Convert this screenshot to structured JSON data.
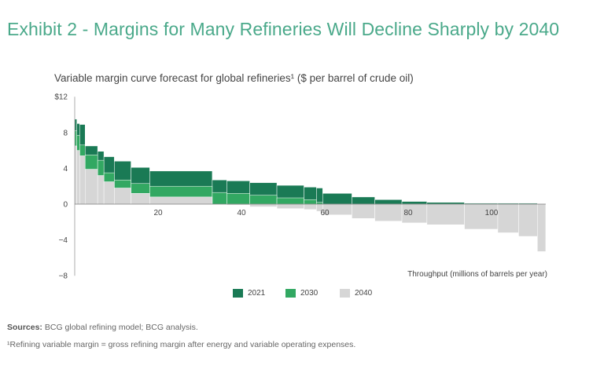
{
  "exhibit_title": "Exhibit 2 - Margins for Many Refineries Will Decline Sharply by 2040",
  "chart_subtitle": "Variable margin curve forecast for global refineries¹ ($ per barrel of crude oil)",
  "sources_label": "Sources:",
  "sources_text": "BCG global refining model; BCG analysis.",
  "footnote": "¹Refining variable margin = gross refining margin after energy and variable operating expenses.",
  "colors": {
    "2021": "#1a7a55",
    "2030": "#32a862",
    "2040": "#d6d6d6"
  },
  "chart_data": {
    "type": "bar",
    "subtype": "step-curve (variable-width bars)",
    "title": "Variable margin curve forecast for global refineries¹ ($ per barrel of crude oil)",
    "xlabel": "Throughput (millions of barrels per year)",
    "ylabel": "",
    "xlim": [
      0,
      113
    ],
    "ylim": [
      -8,
      12
    ],
    "y_ticks": [
      "$12",
      "8",
      "4",
      "0",
      "−4",
      "−8"
    ],
    "y_tick_values": [
      12,
      8,
      4,
      0,
      -4,
      -8
    ],
    "x_ticks": [
      "20",
      "40",
      "60",
      "80",
      "100"
    ],
    "x_tick_values": [
      20,
      40,
      60,
      80,
      100
    ],
    "legend": [
      "2021",
      "2030",
      "2040"
    ],
    "legend_position": "bottom",
    "series": [
      {
        "name": "2021",
        "steps": [
          [
            0,
            9.5
          ],
          [
            0.5,
            9.0
          ],
          [
            1.2,
            8.9
          ],
          [
            2.5,
            6.5
          ],
          [
            5.5,
            5.9
          ],
          [
            7.0,
            5.3
          ],
          [
            9.5,
            4.8
          ],
          [
            13.5,
            4.1
          ],
          [
            18.0,
            3.7
          ],
          [
            33.0,
            2.7
          ],
          [
            36.5,
            2.6
          ],
          [
            42.0,
            2.4
          ],
          [
            48.5,
            2.1
          ],
          [
            55.0,
            1.9
          ],
          [
            58.0,
            1.8
          ],
          [
            59.5,
            1.2
          ],
          [
            66.5,
            0.8
          ],
          [
            72.0,
            0.5
          ],
          [
            78.5,
            0.3
          ],
          [
            84.5,
            0.2
          ],
          [
            93.5,
            0.1
          ],
          [
            101.5,
            0.1
          ],
          [
            106.5,
            0.1
          ],
          [
            111.0,
            -1.5
          ],
          [
            113.0,
            -1.5
          ]
        ]
      },
      {
        "name": "2030",
        "steps": [
          [
            0,
            8.2
          ],
          [
            0.5,
            7.7
          ],
          [
            1.2,
            6.6
          ],
          [
            2.5,
            5.5
          ],
          [
            5.5,
            4.9
          ],
          [
            7.0,
            3.5
          ],
          [
            9.5,
            2.7
          ],
          [
            13.5,
            2.3
          ],
          [
            18.0,
            2.0
          ],
          [
            33.0,
            1.3
          ],
          [
            36.5,
            1.2
          ],
          [
            42.0,
            1.0
          ],
          [
            48.5,
            0.7
          ],
          [
            55.0,
            0.5
          ],
          [
            58.0,
            0.2
          ],
          [
            59.5,
            -0.1
          ],
          [
            66.5,
            -0.3
          ],
          [
            72.0,
            -0.6
          ],
          [
            78.5,
            -0.8
          ],
          [
            84.5,
            -1.0
          ],
          [
            93.5,
            -1.3
          ],
          [
            101.5,
            -1.6
          ],
          [
            106.5,
            -2.0
          ],
          [
            111.0,
            -3.9
          ],
          [
            113.0,
            -3.9
          ]
        ]
      },
      {
        "name": "2040",
        "steps": [
          [
            0,
            6.5
          ],
          [
            0.5,
            6.0
          ],
          [
            1.2,
            5.4
          ],
          [
            2.5,
            3.9
          ],
          [
            5.5,
            3.2
          ],
          [
            7.0,
            2.5
          ],
          [
            9.5,
            1.8
          ],
          [
            13.5,
            1.2
          ],
          [
            18.0,
            0.8
          ],
          [
            33.0,
            0.0
          ],
          [
            36.5,
            -0.1
          ],
          [
            42.0,
            -0.3
          ],
          [
            48.5,
            -0.5
          ],
          [
            55.0,
            -0.6
          ],
          [
            58.0,
            -0.8
          ],
          [
            59.5,
            -1.2
          ],
          [
            66.5,
            -1.6
          ],
          [
            72.0,
            -1.9
          ],
          [
            78.5,
            -2.1
          ],
          [
            84.5,
            -2.3
          ],
          [
            93.5,
            -2.8
          ],
          [
            101.5,
            -3.2
          ],
          [
            106.5,
            -3.6
          ],
          [
            111.0,
            -5.3
          ],
          [
            113.0,
            -5.3
          ]
        ]
      }
    ]
  }
}
